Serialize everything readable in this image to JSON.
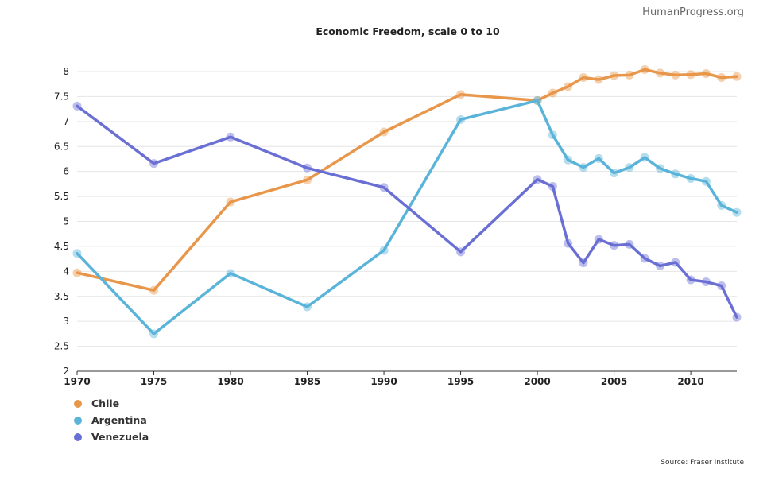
{
  "branding": "HumanProgress.org",
  "source": "Source: Fraser Institute",
  "chart_data": {
    "type": "line",
    "title": "Economic Freedom, scale 0 to 10",
    "xlabel": "",
    "ylabel": "",
    "xlim": [
      1970,
      2013
    ],
    "ylim": [
      2,
      8
    ],
    "x_ticks": [
      "1970",
      "1975",
      "1980",
      "1985",
      "1990",
      "1995",
      "2000",
      "2005",
      "2010"
    ],
    "y_ticks": [
      "2",
      "2.5",
      "3",
      "3.5",
      "4",
      "4.5",
      "5",
      "5.5",
      "6",
      "6.5",
      "7",
      "7.5",
      "8"
    ],
    "grid": true,
    "legend_position": "bottom-left",
    "x": [
      1970,
      1975,
      1980,
      1985,
      1990,
      1995,
      2000,
      2001,
      2002,
      2003,
      2004,
      2005,
      2006,
      2007,
      2008,
      2009,
      2010,
      2011,
      2012,
      2013
    ],
    "series": [
      {
        "name": "Chile",
        "color": "#e8964a",
        "values": [
          3.97,
          3.62,
          5.39,
          5.83,
          6.79,
          7.54,
          7.42,
          7.57,
          7.7,
          7.88,
          7.84,
          7.92,
          7.93,
          8.04,
          7.97,
          7.93,
          7.94,
          7.96,
          7.88,
          7.9
        ]
      },
      {
        "name": "Argentina",
        "color": "#5ab4d9",
        "values": [
          4.36,
          2.75,
          3.96,
          3.29,
          4.42,
          7.04,
          7.42,
          6.73,
          6.23,
          6.08,
          6.26,
          5.97,
          6.08,
          6.28,
          6.06,
          5.95,
          5.86,
          5.8,
          5.32,
          5.18
        ]
      },
      {
        "name": "Venezuela",
        "color": "#6a6fd4",
        "values": [
          7.31,
          6.16,
          6.69,
          6.07,
          5.68,
          4.39,
          5.84,
          5.7,
          4.56,
          4.17,
          4.64,
          4.52,
          4.54,
          4.26,
          4.11,
          4.18,
          3.83,
          3.79,
          3.71,
          3.08
        ]
      }
    ]
  }
}
